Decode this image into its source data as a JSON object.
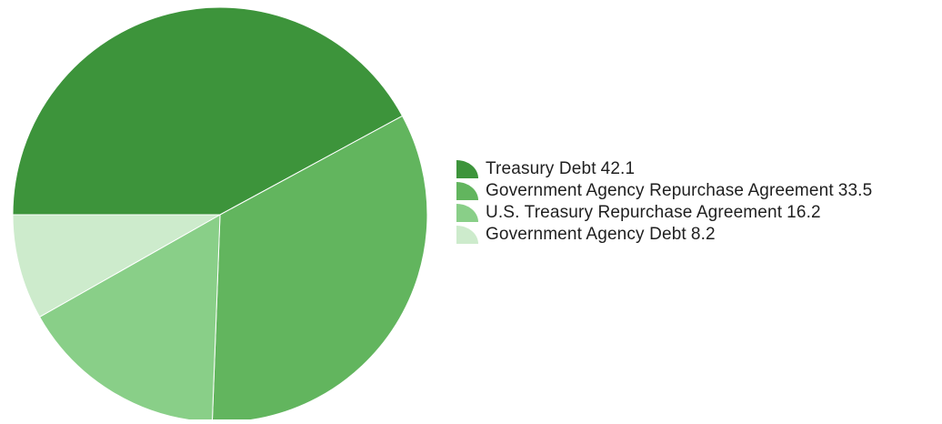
{
  "chart_data": {
    "type": "pie",
    "series": [
      {
        "name": "Treasury Debt",
        "value": 42.1,
        "color": "#3d943b"
      },
      {
        "name": "Government Agency Repurchase Agreement",
        "value": 33.5,
        "color": "#62b55e"
      },
      {
        "name": "U.S. Treasury Repurchase Agreement",
        "value": 16.2,
        "color": "#89cf88"
      },
      {
        "name": "Government Agency Debt",
        "value": 8.2,
        "color": "#cdebcc"
      }
    ],
    "legend_position": "right",
    "start_angle_deg": 180,
    "direction": "clockwise"
  }
}
